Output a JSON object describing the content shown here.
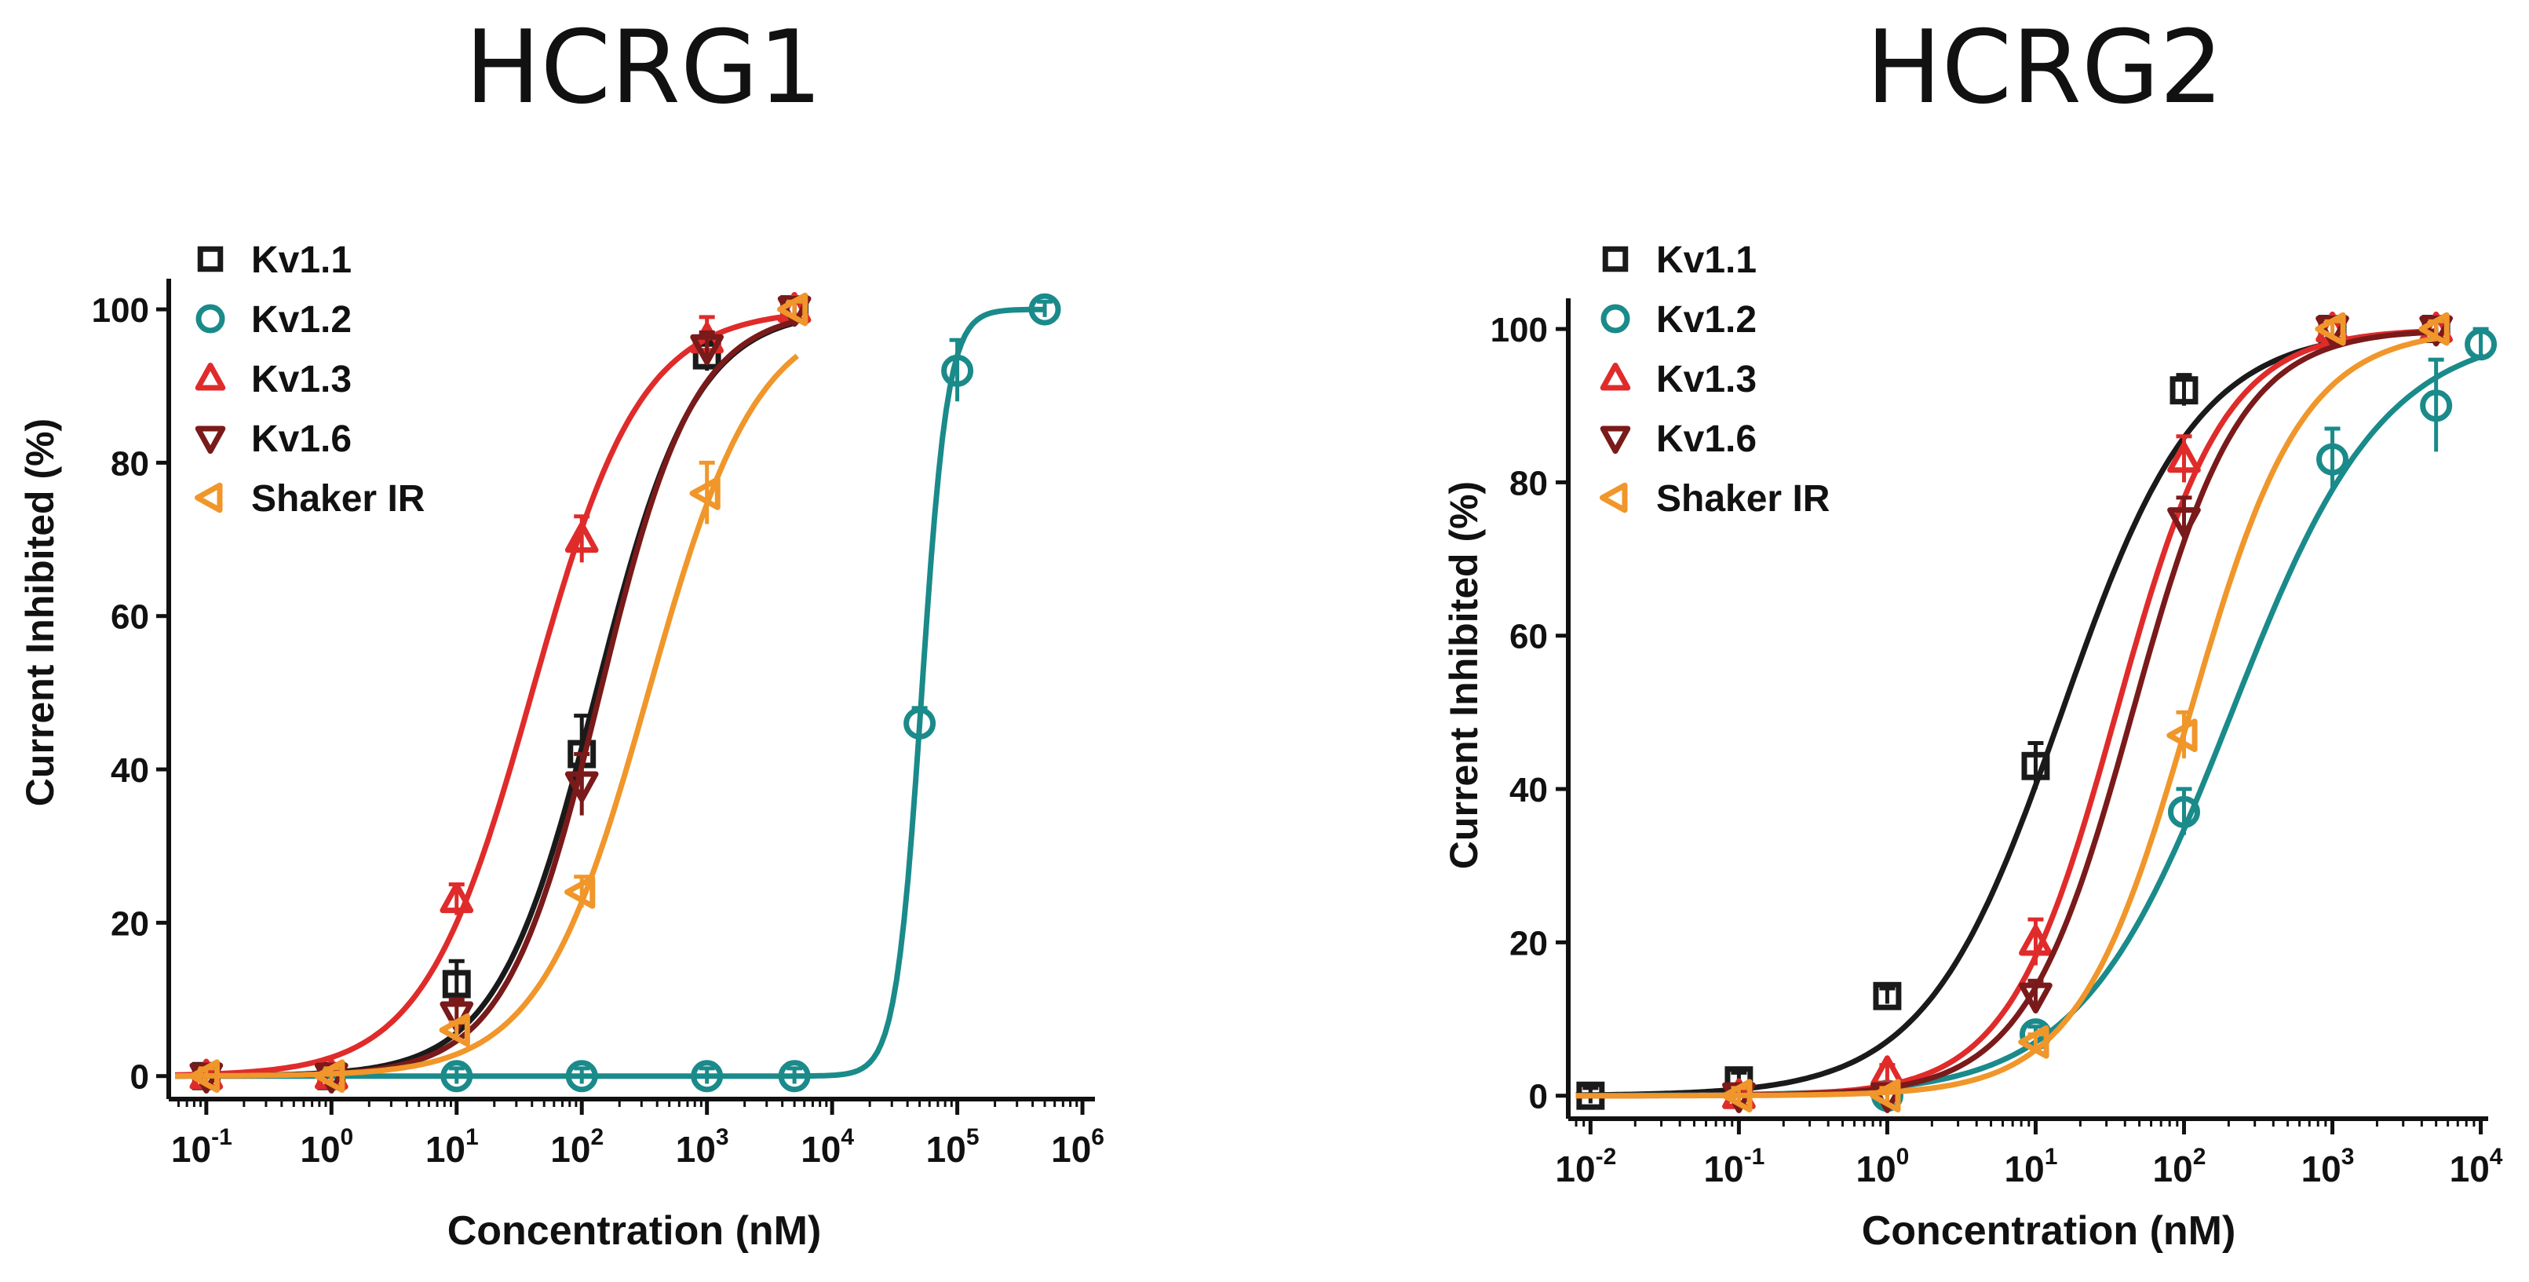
{
  "chart_data": [
    {
      "type": "scatter",
      "title": "HCRG1",
      "xlabel": "Concentration (nM)",
      "ylabel": "Current Inhibited (%)",
      "xscale": "log",
      "xlim_exp": [
        -1.3,
        6.1
      ],
      "ylim": [
        -3,
        104
      ],
      "x_tick_labels": [
        {
          "base": "10",
          "exp": "-1"
        },
        {
          "base": "10",
          "exp": "0"
        },
        {
          "base": "10",
          "exp": "1"
        },
        {
          "base": "10",
          "exp": "2"
        },
        {
          "base": "10",
          "exp": "3"
        },
        {
          "base": "10",
          "exp": "4"
        },
        {
          "base": "10",
          "exp": "5"
        },
        {
          "base": "10",
          "exp": "6"
        }
      ],
      "y_ticks": [
        "0",
        "20",
        "40",
        "60",
        "80",
        "100"
      ],
      "legend_position": "top-left",
      "series": [
        {
          "name": "Kv1.1",
          "marker": "square",
          "color": "#1a1a1a",
          "x": [
            0.1,
            1,
            10,
            100,
            1000,
            5000
          ],
          "values": [
            0,
            0,
            12,
            42,
            94,
            100
          ],
          "errors": [
            1,
            1,
            3,
            5,
            2,
            1
          ],
          "ic50": 130,
          "hill": 1.1
        },
        {
          "name": "Kv1.2",
          "marker": "circle",
          "color": "#1a8a8a",
          "x": [
            10,
            100,
            1000,
            5000,
            50000,
            100000,
            500000
          ],
          "values": [
            0,
            0,
            0,
            0,
            46,
            92,
            100
          ],
          "errors": [
            1,
            1,
            1,
            1,
            2,
            4,
            1
          ],
          "ic50": 52000,
          "hill": 4.2
        },
        {
          "name": "Kv1.3",
          "marker": "triangle-up",
          "color": "#e02b2b",
          "x": [
            0.1,
            1,
            10,
            100,
            1000,
            5000
          ],
          "values": [
            0,
            0,
            23,
            70,
            96,
            100
          ],
          "errors": [
            1,
            1,
            2,
            3,
            3,
            1
          ],
          "ic50": 40,
          "hill": 1.0
        },
        {
          "name": "Kv1.6",
          "marker": "triangle-down",
          "color": "#7a1a1a",
          "x": [
            0.1,
            1,
            10,
            100,
            1000,
            5000
          ],
          "values": [
            0,
            0,
            8,
            38,
            95,
            100
          ],
          "errors": [
            1,
            1,
            2,
            4,
            2,
            1
          ],
          "ic50": 140,
          "hill": 1.15
        },
        {
          "name": "Shaker IR",
          "marker": "triangle-left",
          "color": "#f0962a",
          "x": [
            0.1,
            1,
            10,
            100,
            1000,
            5000
          ],
          "values": [
            0,
            0,
            6,
            24,
            76,
            100
          ],
          "errors": [
            1,
            1,
            1,
            2,
            4,
            1
          ],
          "ic50": 340,
          "hill": 1.0
        }
      ]
    },
    {
      "type": "scatter",
      "title": "HCRG2",
      "xlabel": "Concentration (nM)",
      "ylabel": "Current Inhibited (%)",
      "xscale": "log",
      "xlim_exp": [
        -2.15,
        4.05
      ],
      "ylim": [
        -3,
        104
      ],
      "x_tick_labels": [
        {
          "base": "10",
          "exp": "-2"
        },
        {
          "base": "10",
          "exp": "-1"
        },
        {
          "base": "10",
          "exp": "0"
        },
        {
          "base": "10",
          "exp": "1"
        },
        {
          "base": "10",
          "exp": "2"
        },
        {
          "base": "10",
          "exp": "3"
        },
        {
          "base": "10",
          "exp": "4"
        }
      ],
      "y_ticks": [
        "0",
        "20",
        "40",
        "60",
        "80",
        "100"
      ],
      "legend_position": "top-left",
      "series": [
        {
          "name": "Kv1.1",
          "marker": "square",
          "color": "#1a1a1a",
          "x": [
            0.01,
            0.1,
            1,
            10,
            100,
            1000,
            5000
          ],
          "values": [
            0,
            2,
            13,
            43,
            92,
            100,
            100
          ],
          "errors": [
            1,
            1,
            1,
            3,
            2,
            1,
            1
          ],
          "ic50": 15,
          "hill": 0.95
        },
        {
          "name": "Kv1.2",
          "marker": "circle",
          "color": "#1a8a8a",
          "x": [
            1,
            10,
            100,
            1000,
            5000,
            10000
          ],
          "values": [
            0,
            8,
            37,
            83,
            90,
            98
          ],
          "errors": [
            1,
            1,
            3,
            4,
            6,
            2
          ],
          "ic50": 210,
          "hill": 0.85
        },
        {
          "name": "Kv1.3",
          "marker": "triangle-up",
          "color": "#e02b2b",
          "x": [
            0.1,
            1,
            10,
            100,
            1000,
            5000
          ],
          "values": [
            0,
            3,
            20,
            83,
            100,
            100
          ],
          "errors": [
            1,
            1,
            3,
            3,
            1,
            1
          ],
          "ic50": 35,
          "hill": 1.2
        },
        {
          "name": "Kv1.6",
          "marker": "triangle-down",
          "color": "#7a1a1a",
          "x": [
            0.1,
            1,
            10,
            100,
            1000,
            5000
          ],
          "values": [
            0,
            0,
            13,
            75,
            100,
            100
          ],
          "errors": [
            1,
            1,
            2,
            3,
            1,
            1
          ],
          "ic50": 45,
          "hill": 1.2
        },
        {
          "name": "Shaker IR",
          "marker": "triangle-left",
          "color": "#f0962a",
          "x": [
            0.1,
            1,
            10,
            100,
            1000,
            5000
          ],
          "values": [
            0,
            0,
            7,
            47,
            100,
            100
          ],
          "errors": [
            1,
            1,
            1,
            3,
            1,
            1
          ],
          "ic50": 110,
          "hill": 1.15
        }
      ]
    }
  ]
}
